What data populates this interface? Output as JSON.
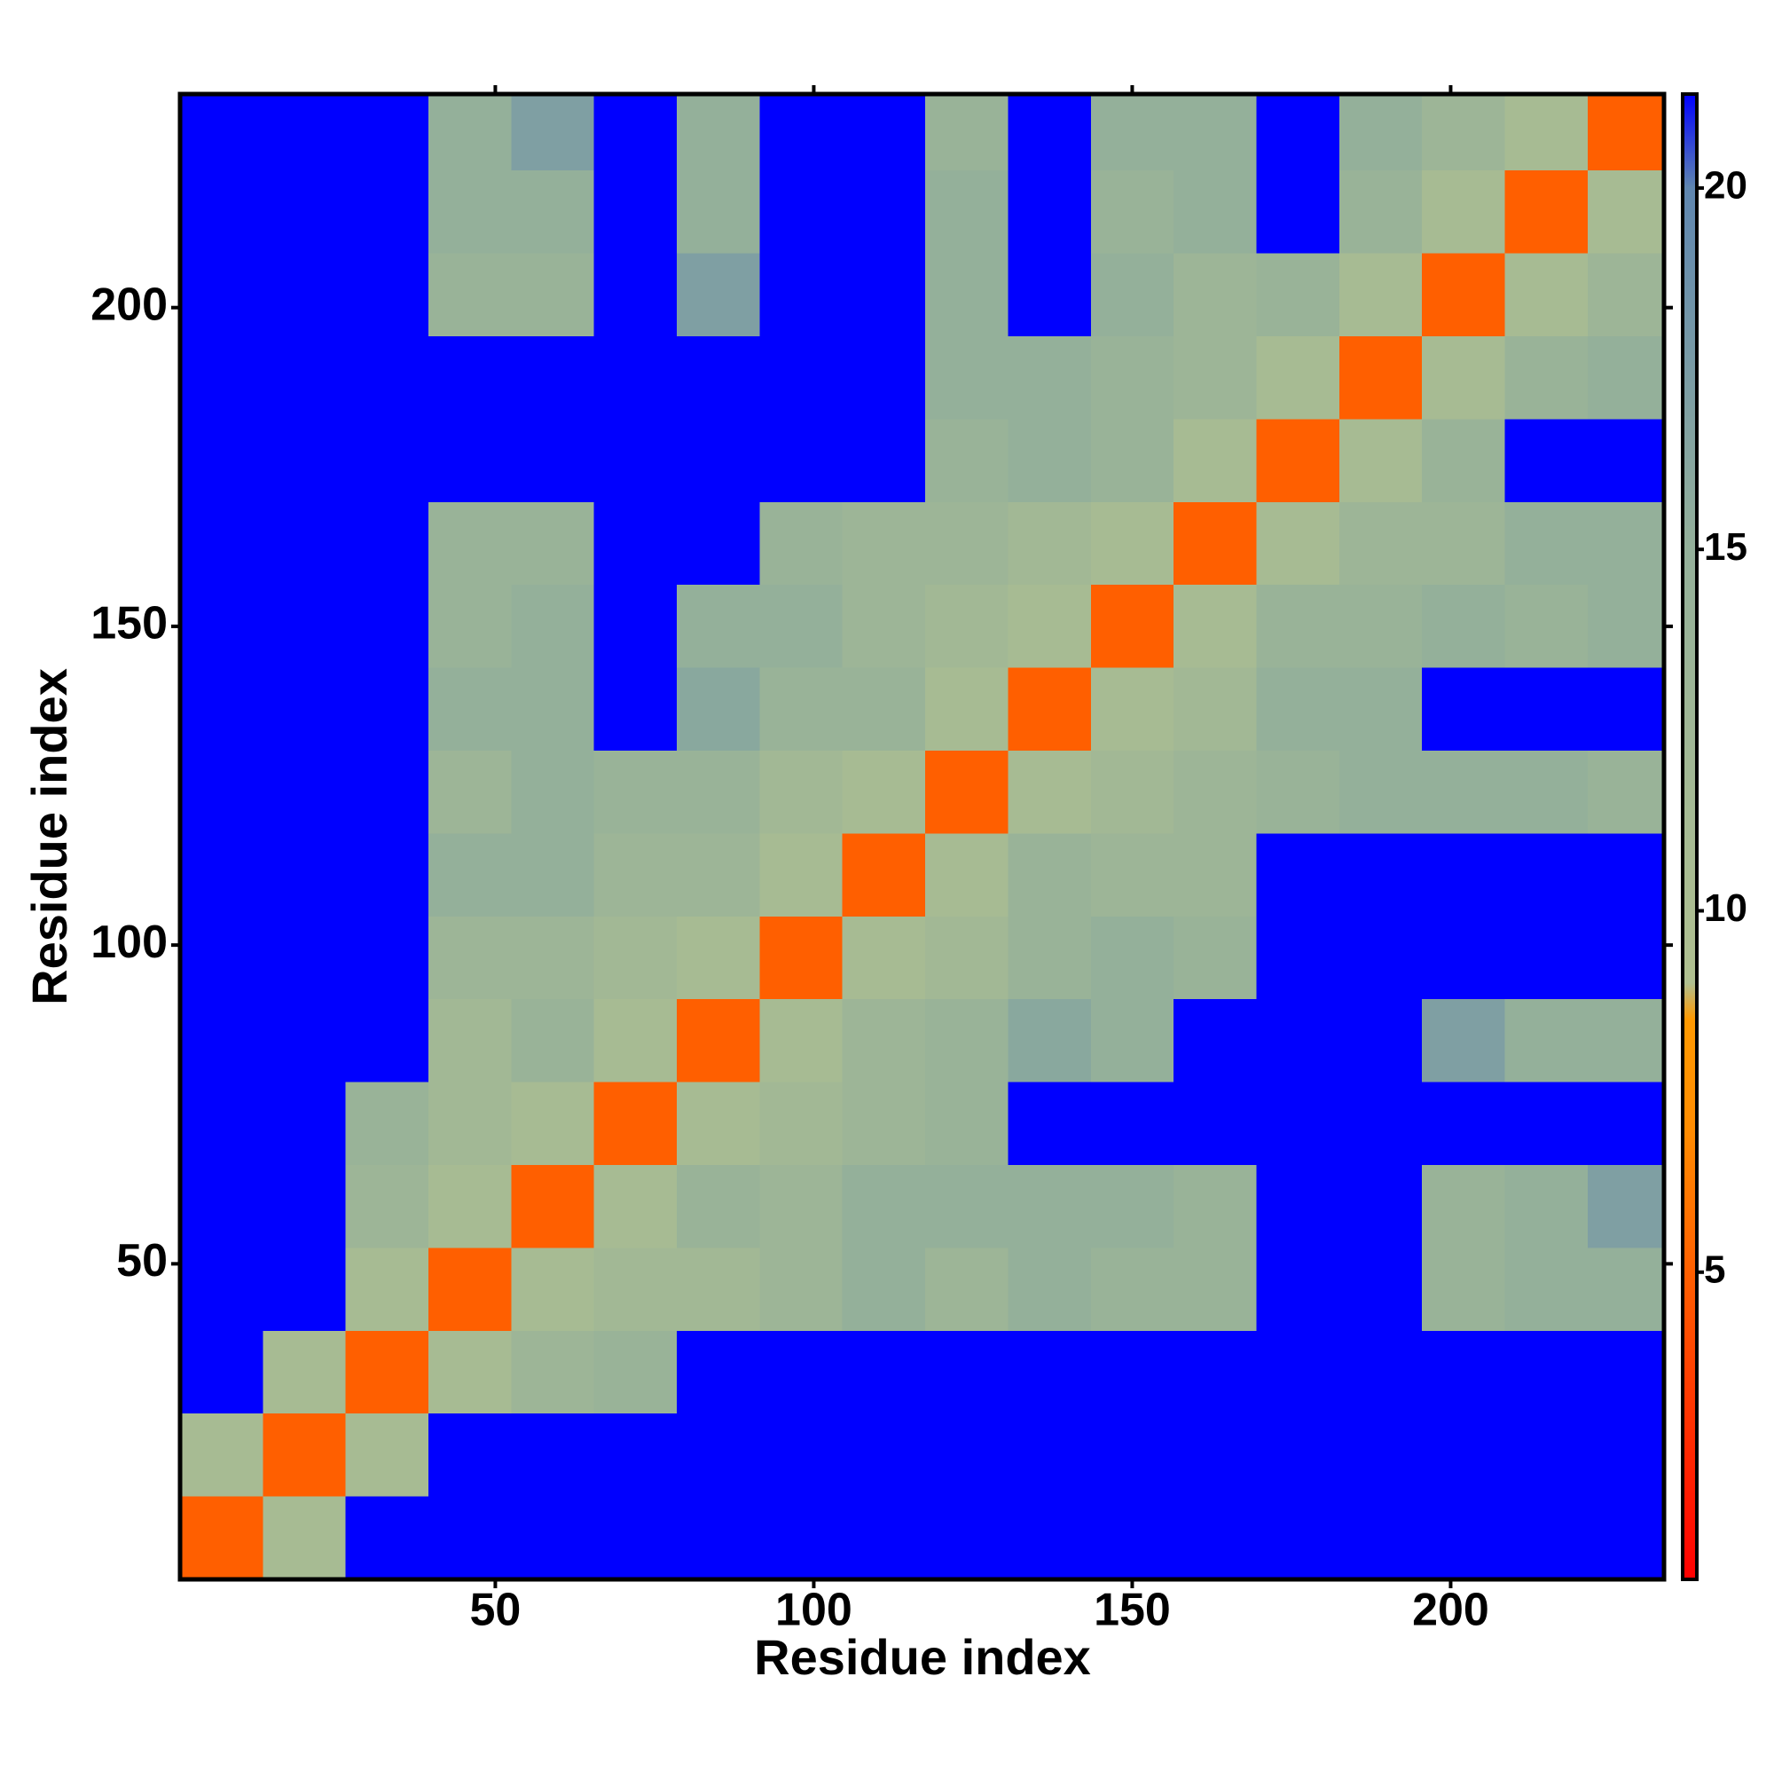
{
  "chart_data": {
    "type": "heatmap",
    "xlabel": "Residue index",
    "ylabel": "Residue index",
    "xlim": [
      0.5,
      233.5
    ],
    "ylim": [
      0.5,
      233.5
    ],
    "xticks": [
      50,
      100,
      150,
      200
    ],
    "yticks": [
      50,
      100,
      150,
      200
    ],
    "xbins": [
      0.5,
      13.5,
      26.5,
      39.5,
      52.5,
      65.5,
      78.5,
      91.5,
      104.5,
      117.5,
      130.5,
      143.5,
      156.5,
      169.5,
      182.5,
      195.5,
      208.5,
      221.5,
      233.5
    ],
    "ybins": [
      0.5,
      13.5,
      26.5,
      39.5,
      52.5,
      65.5,
      78.5,
      91.5,
      104.5,
      117.5,
      130.5,
      143.5,
      156.5,
      169.5,
      182.5,
      195.5,
      208.5,
      221.5,
      233.5
    ],
    "z": [
      [
        5,
        11,
        22,
        22,
        22,
        22,
        22,
        22,
        22,
        22,
        22,
        22,
        22,
        22,
        22,
        22,
        22,
        22
      ],
      [
        11,
        5,
        11,
        22,
        22,
        22,
        22,
        22,
        22,
        22,
        22,
        22,
        22,
        22,
        22,
        22,
        22,
        22
      ],
      [
        22,
        11,
        5,
        11,
        13,
        14,
        22,
        22,
        22,
        22,
        22,
        22,
        22,
        22,
        22,
        22,
        22,
        22
      ],
      [
        22,
        22,
        11,
        5,
        11,
        12,
        12,
        13,
        15,
        13,
        15,
        14,
        14,
        22,
        22,
        14,
        15,
        15
      ],
      [
        22,
        22,
        13,
        11,
        5,
        11,
        14,
        13,
        15,
        15,
        15,
        15,
        14,
        22,
        22,
        14,
        15,
        17
      ],
      [
        22,
        22,
        14,
        12,
        11,
        5,
        11,
        12,
        13,
        14,
        22,
        22,
        22,
        22,
        22,
        22,
        22,
        22
      ],
      [
        22,
        22,
        22,
        12,
        14,
        11,
        5,
        11,
        13,
        14,
        16,
        15,
        22,
        22,
        22,
        17,
        15,
        15
      ],
      [
        22,
        22,
        22,
        13,
        13,
        12,
        11,
        5,
        11,
        12,
        14,
        15,
        14,
        22,
        22,
        22,
        22,
        22
      ],
      [
        22,
        22,
        22,
        15,
        15,
        13,
        13,
        11,
        5,
        11,
        14,
        13,
        13,
        22,
        22,
        22,
        22,
        22
      ],
      [
        22,
        22,
        22,
        13,
        15,
        14,
        14,
        12,
        11,
        5,
        11,
        12,
        13,
        14,
        15,
        15,
        15,
        14
      ],
      [
        22,
        22,
        22,
        15,
        15,
        22,
        16,
        14,
        14,
        11,
        5,
        11,
        12,
        15,
        15,
        22,
        22,
        22
      ],
      [
        22,
        22,
        22,
        14,
        15,
        22,
        15,
        15,
        13,
        12,
        11,
        5,
        11,
        14,
        14,
        15,
        14,
        15
      ],
      [
        22,
        22,
        22,
        14,
        14,
        22,
        22,
        14,
        13,
        13,
        12,
        11,
        5,
        11,
        13,
        13,
        15,
        15
      ],
      [
        22,
        22,
        22,
        22,
        22,
        22,
        22,
        22,
        22,
        14,
        15,
        14,
        11,
        5,
        11,
        14,
        22,
        22
      ],
      [
        22,
        22,
        22,
        22,
        22,
        22,
        22,
        22,
        22,
        15,
        15,
        14,
        13,
        11,
        5,
        11,
        14,
        15
      ],
      [
        22,
        22,
        22,
        14,
        14,
        22,
        17,
        22,
        22,
        15,
        22,
        15,
        13,
        14,
        11,
        5,
        11,
        13
      ],
      [
        22,
        22,
        22,
        15,
        15,
        22,
        15,
        22,
        22,
        15,
        22,
        14,
        15,
        22,
        14,
        11,
        5,
        11
      ],
      [
        22,
        22,
        22,
        15,
        17,
        22,
        15,
        22,
        22,
        14,
        22,
        15,
        15,
        22,
        15,
        13,
        11,
        5
      ]
    ],
    "colorbar": {
      "lim": [
        0.75,
        21.3
      ],
      "ticks": [
        5,
        10,
        15,
        20
      ]
    },
    "colorscale": [
      [
        0.75,
        "#ff0000"
      ],
      [
        7,
        "#ff8c00"
      ],
      [
        8.5,
        "#ff9900"
      ],
      [
        9,
        "#b0c090"
      ],
      [
        15,
        "#94b09a"
      ],
      [
        20,
        "#5f86b0"
      ],
      [
        21.3,
        "#0000ff"
      ]
    ]
  }
}
